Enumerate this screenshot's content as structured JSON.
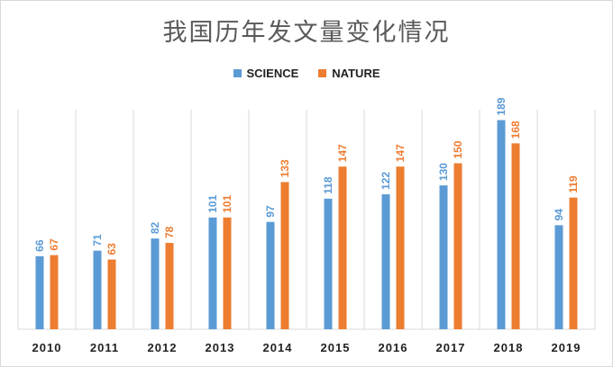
{
  "chart_data": {
    "type": "bar",
    "title": "我国历年发文量变化情况",
    "categories": [
      "2010",
      "2011",
      "2012",
      "2013",
      "2014",
      "2015",
      "2016",
      "2017",
      "2018",
      "2019"
    ],
    "series": [
      {
        "name": "SCIENCE",
        "color": "#5b9bd5",
        "values": [
          66,
          71,
          82,
          101,
          97,
          118,
          122,
          130,
          189,
          94
        ]
      },
      {
        "name": "NATURE",
        "color": "#ed7d31",
        "values": [
          67,
          63,
          78,
          101,
          133,
          147,
          147,
          150,
          168,
          119
        ]
      }
    ],
    "ylim": [
      0,
      200
    ],
    "grid": "vertical-category-separators",
    "legend_position": "top-center",
    "data_labels": true
  }
}
